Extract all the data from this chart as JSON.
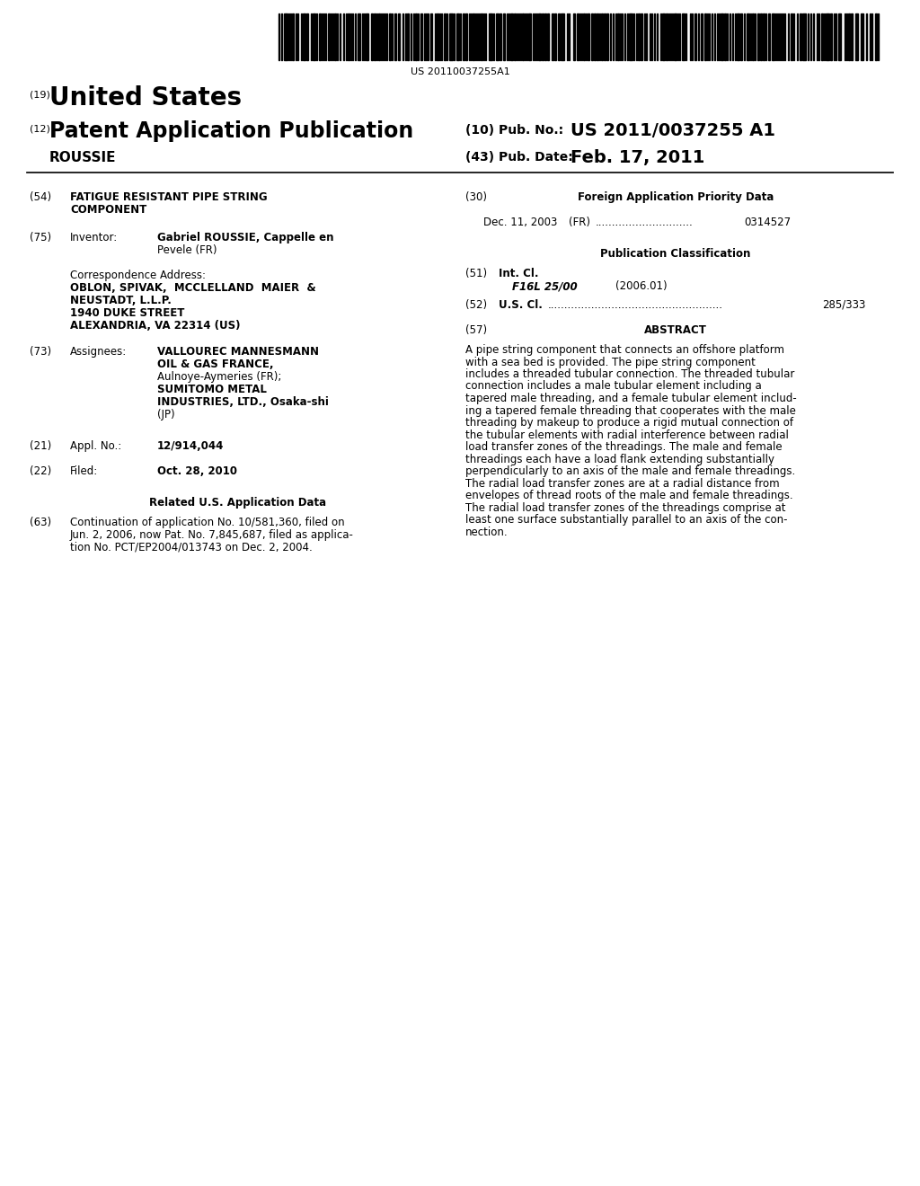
{
  "background_color": "#ffffff",
  "barcode_text": "US 20110037255A1",
  "country": "United States",
  "pub_type": "Patent Application Publication",
  "inventor_name": "ROUSSIE",
  "pub_number_label": "(10) Pub. No.:",
  "pub_number": "US 2011/0037255 A1",
  "pub_date_label": "(43) Pub. Date:",
  "pub_date": "Feb. 17, 2011",
  "field54_label": "(54)",
  "field54_title_line1": "FATIGUE RESISTANT PIPE STRING",
  "field54_title_line2": "COMPONENT",
  "field75_label": "(75)",
  "field75_key": "Inventor:",
  "field75_value_line1": "Gabriel ROUSSIE, Cappelle en",
  "field75_value_line2": "Pevele (FR)",
  "corr_label": "Correspondence Address:",
  "corr_line1": "OBLON, SPIVAK,  MCCLELLAND  MAIER  &",
  "corr_line2": "NEUSTADT, L.L.P.",
  "corr_line3": "1940 DUKE STREET",
  "corr_line4": "ALEXANDRIA, VA 22314 (US)",
  "field73_label": "(73)",
  "field73_key": "Assignees:",
  "field73_value_line1": "VALLOUREC MANNESMANN",
  "field73_value_line2": "OIL & GAS FRANCE,",
  "field73_value_line3": "Aulnoye-Aymeries (FR);",
  "field73_value_line4": "SUMITOMO METAL",
  "field73_value_line5": "INDUSTRIES, LTD., Osaka-shi",
  "field73_value_line6": "(JP)",
  "field21_label": "(21)",
  "field21_key": "Appl. No.:",
  "field21_value": "12/914,044",
  "field22_label": "(22)",
  "field22_key": "Filed:",
  "field22_value": "Oct. 28, 2010",
  "related_header": "Related U.S. Application Data",
  "field63_label": "(63)",
  "field63_line1": "Continuation of application No. 10/581,360, filed on",
  "field63_line2": "Jun. 2, 2006, now Pat. No. 7,845,687, filed as applica-",
  "field63_line3": "tion No. PCT/EP2004/013743 on Dec. 2, 2004.",
  "field30_label": "(30)",
  "field30_header": "Foreign Application Priority Data",
  "field30_date": "Dec. 11, 2003",
  "field30_country": "(FR)",
  "field30_dots": ".............................",
  "field30_number": "0314527",
  "pub_class_header": "Publication Classification",
  "field51_label": "(51)",
  "field51_key": "Int. Cl.",
  "field51_class": "F16L 25/00",
  "field51_year": "(2006.01)",
  "field52_label": "(52)",
  "field52_key": "U.S. Cl.",
  "field52_dots": "....................................................",
  "field52_number": "285/333",
  "field57_label": "(57)",
  "field57_header": "ABSTRACT",
  "abstract_lines": [
    "A pipe string component that connects an offshore platform",
    "with a sea bed is provided. The pipe string component",
    "includes a threaded tubular connection. The threaded tubular",
    "connection includes a male tubular element including a",
    "tapered male threading, and a female tubular element includ-",
    "ing a tapered female threading that cooperates with the male",
    "threading by makeup to produce a rigid mutual connection of",
    "the tubular elements with radial interference between radial",
    "load transfer zones of the threadings. The male and female",
    "threadings each have a load flank extending substantially",
    "perpendicularly to an axis of the male and female threadings.",
    "The radial load transfer zones are at a radial distance from",
    "envelopes of thread roots of the male and female threadings.",
    "The radial load transfer zones of the threadings comprise at",
    "least one surface substantially parallel to an axis of the con-",
    "nection."
  ],
  "label19": "(19)",
  "label12": "(12)"
}
